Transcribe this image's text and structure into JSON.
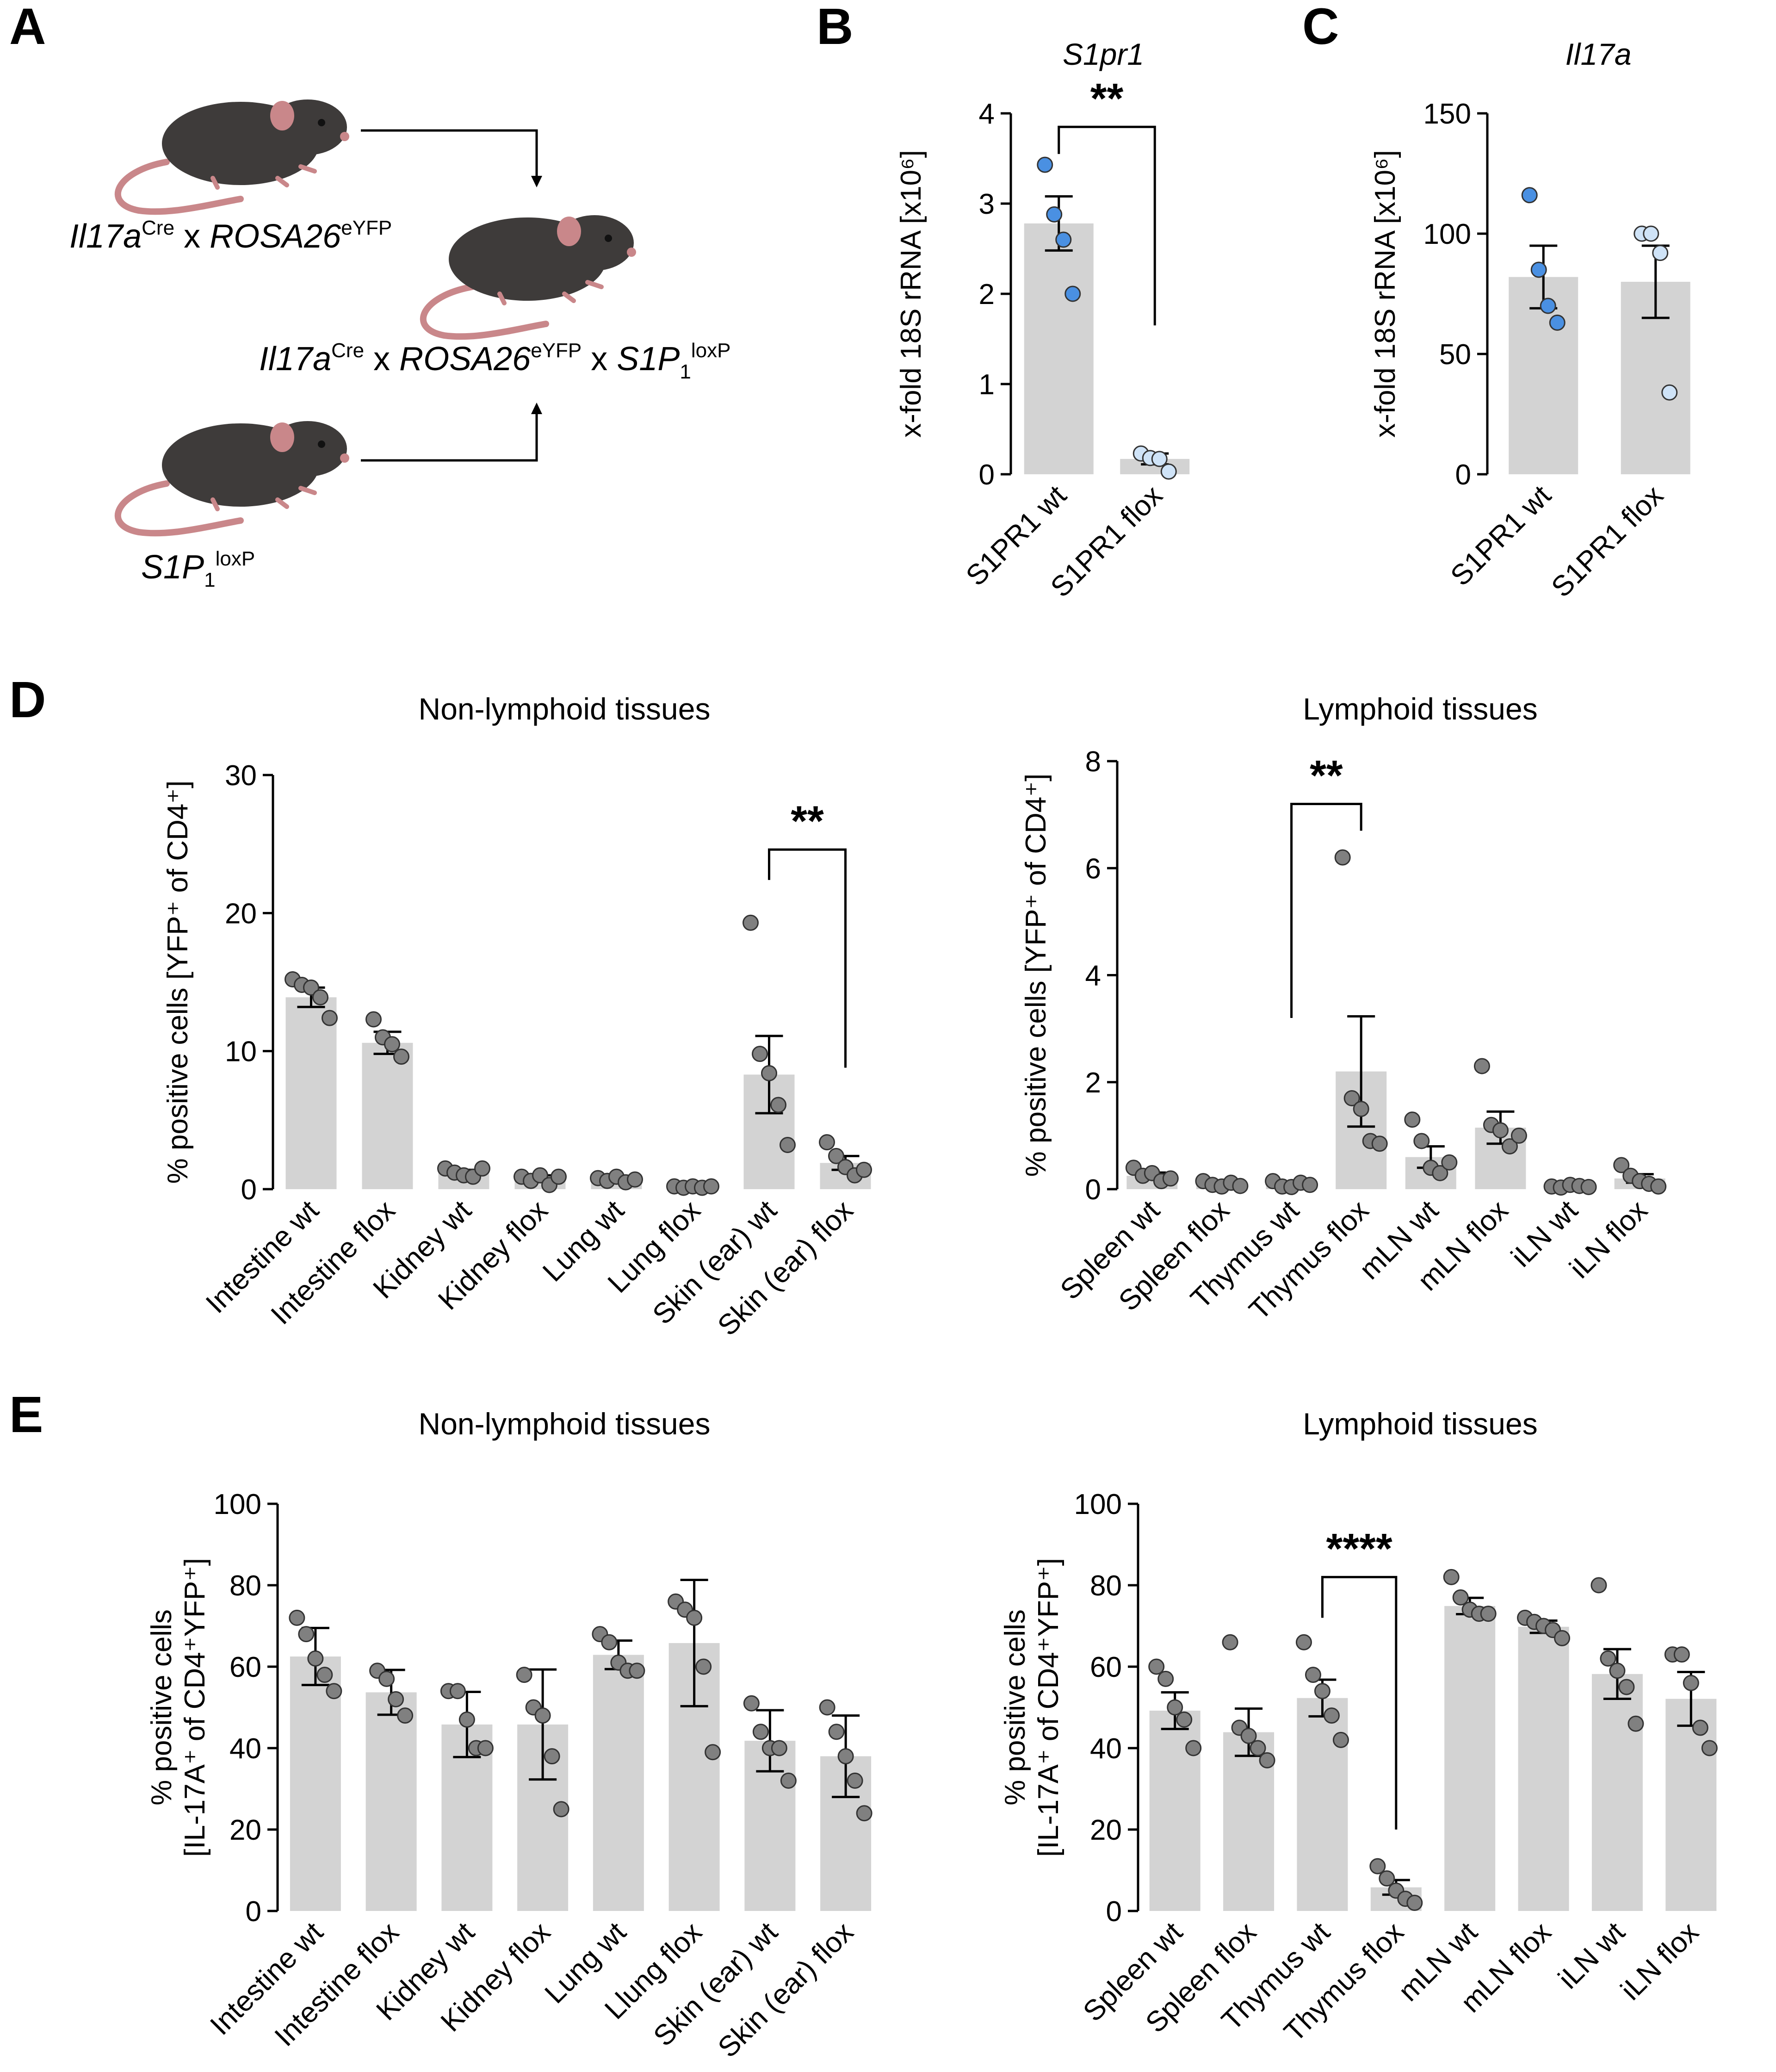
{
  "panels": {
    "A": "A",
    "B": "B",
    "C": "C",
    "D": "D",
    "E": "E"
  },
  "panel_A": {
    "mouse_1": {
      "gene": "Il17a",
      "sup1": "Cre",
      "sep": "x",
      "gene2": "ROSA26",
      "sup2": "eYFP"
    },
    "mouse_2": {
      "gene": "S1P",
      "sub": "1",
      "sup": "loxP"
    },
    "cross": {
      "gene": "Il17a",
      "sup1": "Cre",
      "sep1": "x",
      "gene2": "ROSA26",
      "sup2": "eYFP",
      "sep2": "x",
      "gene3": "S1P",
      "sub3": "1",
      "sup3": "loxP"
    }
  },
  "colors": {
    "bar": "#d3d3d3",
    "wt_dot": "#4a90e2",
    "flox_dot": "#cfe3f7",
    "grey_dot": "#808080",
    "axis": "#000000",
    "mouse_body": "#3e3b3a",
    "mouse_tail": "#c9878a"
  },
  "chart_data": [
    {
      "id": "B",
      "type": "bar",
      "title": "S1pr1",
      "ylabel": "x-fold 18S rRNA [x10⁶]",
      "ylim": [
        0,
        4
      ],
      "yticks": [
        "0",
        "1",
        "2",
        "3",
        "4"
      ],
      "categories": [
        "S1PR1 wt",
        "S1PR1 flox"
      ],
      "values": [
        2.78,
        0.17
      ],
      "err": [
        0.3,
        0.06
      ],
      "points": [
        [
          3.43,
          2.88,
          2.6,
          2.0
        ],
        [
          0.23,
          0.18,
          0.17,
          0.03
        ]
      ],
      "dot_colors": [
        "#4a90e2",
        "#cfe3f7"
      ],
      "sig": {
        "label": "**",
        "from": 0,
        "to": 1,
        "y_left": 3.85,
        "y_right": 3.85,
        "drop_left": 3.55,
        "drop_right": 1.65
      }
    },
    {
      "id": "C",
      "type": "bar",
      "title": "Il17a",
      "ylabel": "x-fold 18S rRNA [x10⁶]",
      "ylim": [
        0,
        150
      ],
      "yticks": [
        "0",
        "50",
        "100",
        "150"
      ],
      "categories": [
        "S1PR1 wt",
        "S1PR1 flox"
      ],
      "values": [
        82,
        80
      ],
      "err": [
        13,
        15
      ],
      "points": [
        [
          116,
          85,
          70,
          63
        ],
        [
          100,
          100,
          92,
          34
        ]
      ],
      "dot_colors": [
        "#4a90e2",
        "#cfe3f7"
      ]
    },
    {
      "id": "D-left",
      "type": "bar",
      "title": "Non-lymphoid tissues",
      "ylabel": "% positive cells [YFP⁺ of CD4⁺]",
      "ylim": [
        0,
        30
      ],
      "yticks": [
        "0",
        "10",
        "20",
        "30"
      ],
      "categories": [
        "Intestine wt",
        "Intestine flox",
        "Kidney wt",
        "Kidney flox",
        "Lung wt",
        "Lung flox",
        "Skin (ear) wt",
        "Skin (ear) flox"
      ],
      "values": [
        13.9,
        10.6,
        1.2,
        0.8,
        0.7,
        0.2,
        8.3,
        1.9
      ],
      "err": [
        0.7,
        0.8,
        0.2,
        0.2,
        0.1,
        0.05,
        2.8,
        0.5
      ],
      "points": [
        [
          15.2,
          14.8,
          14.6,
          13.9,
          12.4
        ],
        [
          12.3,
          11.0,
          10.5,
          9.6
        ],
        [
          1.5,
          1.2,
          1.0,
          0.9,
          1.5
        ],
        [
          0.9,
          0.6,
          1.0,
          0.3,
          0.9
        ],
        [
          0.8,
          0.6,
          0.9,
          0.5,
          0.7
        ],
        [
          0.2,
          0.1,
          0.2,
          0.1,
          0.2
        ],
        [
          19.3,
          9.8,
          8.4,
          6.1,
          3.2
        ],
        [
          3.4,
          2.4,
          1.6,
          1.0,
          1.4
        ]
      ],
      "dot_colors": [
        "#808080"
      ],
      "sig": {
        "label": "**",
        "from": 6,
        "to": 7,
        "y_left": 24.6,
        "y_right": 24.6,
        "drop_left": 22.4,
        "drop_right": 8.8
      }
    },
    {
      "id": "D-right",
      "type": "bar",
      "title": "Lymphoid tissues",
      "ylabel": "% positive cells [YFP⁺ of CD4⁺]",
      "ylim": [
        0,
        8
      ],
      "yticks": [
        "0",
        "2",
        "4",
        "6",
        "8"
      ],
      "categories": [
        "Spleen wt",
        "Spleen flox",
        "Thymus wt",
        "Thymus flox",
        "mLN wt",
        "mLN flox",
        "iLN wt",
        "iLN flox"
      ],
      "values": [
        0.25,
        0.1,
        0.08,
        2.2,
        0.6,
        1.15,
        0.05,
        0.2
      ],
      "err": [
        0.06,
        0.03,
        0.03,
        1.03,
        0.2,
        0.3,
        0.02,
        0.08
      ],
      "points": [
        [
          0.4,
          0.25,
          0.3,
          0.15,
          0.2
        ],
        [
          0.15,
          0.08,
          0.05,
          0.12,
          0.06
        ],
        [
          0.15,
          0.05,
          0.04,
          0.12,
          0.08
        ],
        [
          6.2,
          1.7,
          1.5,
          0.9,
          0.85
        ],
        [
          1.3,
          0.9,
          0.4,
          0.3,
          0.5
        ],
        [
          2.3,
          1.2,
          1.1,
          0.8,
          1.0
        ],
        [
          0.05,
          0.03,
          0.08,
          0.06,
          0.04
        ],
        [
          0.45,
          0.25,
          0.15,
          0.1,
          0.05
        ]
      ],
      "dot_colors": [
        "#808080"
      ],
      "sig": {
        "label": "**",
        "from": 2,
        "to": 3,
        "y_left": 7.2,
        "y_right": 7.2,
        "drop_left": 3.2,
        "drop_right": 6.7
      }
    },
    {
      "id": "E-left",
      "type": "bar",
      "title": "Non-lymphoid tissues",
      "ylabel": "% positive cells [IL-17A⁺ of CD4⁺YFP⁺]",
      "ylim": [
        0,
        100
      ],
      "yticks": [
        "0",
        "20",
        "40",
        "60",
        "80",
        "100"
      ],
      "categories": [
        "Intestine wt",
        "Intestine flox",
        "Kidney wt",
        "Kidney flox",
        "Lung wt",
        "Llung flox",
        "Skin (ear) wt",
        "Skin (ear) flox"
      ],
      "values": [
        62.5,
        53.7,
        45.8,
        45.8,
        62.9,
        65.8,
        41.8,
        38.0
      ],
      "err": [
        7,
        5.5,
        8,
        13.5,
        3.5,
        15.5,
        7.5,
        10
      ],
      "points": [
        [
          72,
          68,
          62,
          58,
          54
        ],
        [
          59,
          57,
          52,
          48
        ],
        [
          54,
          54,
          47,
          40,
          40
        ],
        [
          58,
          50,
          48,
          38,
          25
        ],
        [
          68,
          66,
          61,
          59,
          59
        ],
        [
          76,
          74,
          72,
          60,
          39
        ],
        [
          51,
          44,
          40,
          40,
          32
        ],
        [
          50,
          44,
          38,
          32,
          24
        ]
      ],
      "dot_colors": [
        "#808080"
      ]
    },
    {
      "id": "E-right",
      "type": "bar",
      "title": "Lymphoid tissues",
      "ylabel": "% positive cells [IL-17A⁺ of CD4⁺YFP⁺]",
      "ylim": [
        0,
        100
      ],
      "yticks": [
        "0",
        "20",
        "40",
        "60",
        "80",
        "100"
      ],
      "categories": [
        "Spleen wt",
        "Spleen flox",
        "Thymus wt",
        "Thymus flox",
        "mLN wt",
        "mLN flox",
        "iLN wt",
        "iLN flox"
      ],
      "values": [
        49.2,
        43.9,
        52.3,
        5.8,
        74.9,
        69.8,
        58.2,
        52.1
      ],
      "err": [
        4.5,
        5.8,
        4.5,
        1.8,
        2.0,
        1.5,
        6.1,
        6.6
      ],
      "points": [
        [
          60,
          57,
          50,
          47,
          40
        ],
        [
          66,
          45,
          43,
          40,
          37
        ],
        [
          66,
          58,
          54,
          48,
          42
        ],
        [
          11,
          8,
          5,
          3,
          2
        ],
        [
          82,
          77,
          74,
          73,
          73
        ],
        [
          72,
          71,
          70,
          69,
          67
        ],
        [
          80,
          62,
          59,
          55,
          46
        ],
        [
          63,
          63,
          56,
          45,
          40
        ]
      ],
      "dot_colors": [
        "#808080"
      ],
      "sig": {
        "label": "****",
        "from": 2,
        "to": 3,
        "y_left": 82,
        "y_right": 82,
        "drop_left": 72,
        "drop_right": 20
      }
    }
  ]
}
